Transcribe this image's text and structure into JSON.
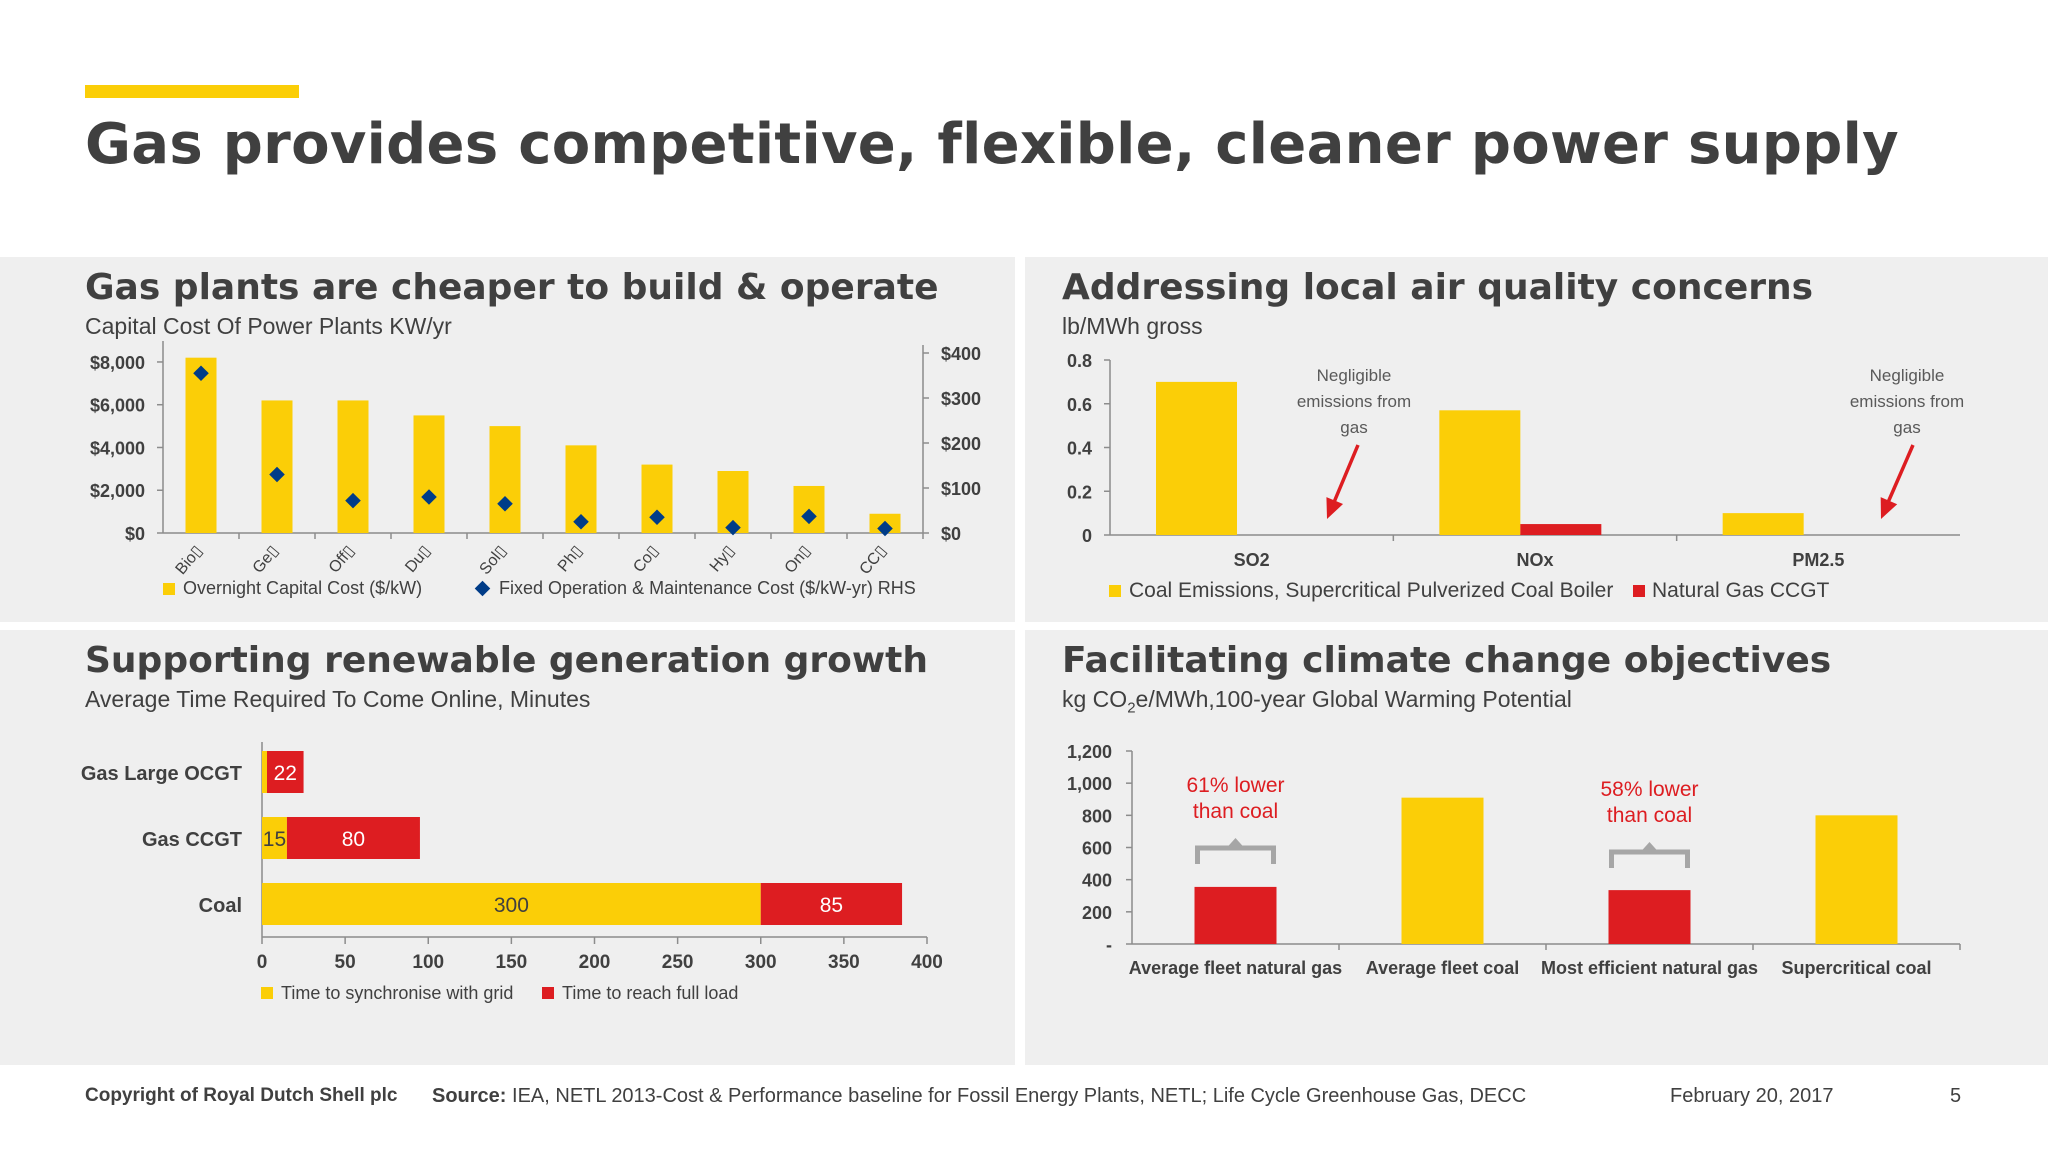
{
  "title": "Gas provides competitive, flexible, cleaner power supply",
  "colors": {
    "yellow": "#FBCE07",
    "red": "#DD1D21",
    "navy": "#003C88",
    "text": "#404040",
    "panel": "#EFEFEF"
  },
  "panels": {
    "capital": {
      "title": "Gas plants are cheaper to build & operate",
      "subtitle": "Capital Cost Of Power Plants KW/yr"
    },
    "air": {
      "title": "Addressing local air quality concerns",
      "subtitle": "lb/MWh gross"
    },
    "renew": {
      "title": "Supporting renewable generation growth",
      "subtitle": "Average Time Required To Come Online, Minutes"
    },
    "climate": {
      "title": "Facilitating climate change objectives",
      "subtitle_pre": "kg CO",
      "subtitle_sub": "2",
      "subtitle_post": "e/MWh,100-year Global Warming Potential"
    }
  },
  "chart_data": [
    {
      "type": "bar",
      "title": "Gas plants are cheaper to build & operate",
      "subtitle": "Capital Cost Of Power Plants KW/yr",
      "categories": [
        "Bio▯",
        "Ge▯",
        "Off▯",
        "Du▯",
        "Sol▯",
        "Ph▯",
        "Co▯",
        "Hy▯",
        "On▯",
        "CC▯"
      ],
      "series": [
        {
          "name": "Overnight Capital Cost ($/kW)",
          "kind": "bar",
          "axis": "left",
          "color": "#FBCE07",
          "values": [
            8200,
            6200,
            6200,
            5500,
            5000,
            4100,
            3200,
            2900,
            2200,
            900
          ]
        },
        {
          "name": "Fixed Operation & Maintenance Cost ($/kW-yr) RHS",
          "kind": "marker",
          "axis": "right",
          "color": "#003C88",
          "values": [
            355,
            130,
            72,
            80,
            65,
            25,
            35,
            12,
            37,
            10
          ]
        }
      ],
      "left_axis": {
        "ticks": [
          "$0",
          "$2,000",
          "$4,000",
          "$6,000",
          "$8,000"
        ],
        "range": [
          0,
          8700
        ]
      },
      "right_axis": {
        "ticks": [
          "$0",
          "$100",
          "$200",
          "$300",
          "$400"
        ],
        "range": [
          0,
          400
        ]
      },
      "legend_position": "bottom"
    },
    {
      "type": "bar",
      "title": "Addressing local air quality concerns",
      "ylabel": "lb/MWh gross",
      "categories": [
        "SO2",
        "NOx",
        "PM2.5"
      ],
      "series": [
        {
          "name": "Coal Emissions, Supercritical Pulverized Coal Boiler",
          "color": "#FBCE07",
          "values": [
            0.7,
            0.57,
            0.1
          ]
        },
        {
          "name": "Natural Gas CCGT",
          "color": "#DD1D21",
          "values": [
            0,
            0.05,
            0
          ]
        }
      ],
      "y_ticks": [
        "0",
        "0.2",
        "0.4",
        "0.6",
        "0.8"
      ],
      "ylim": [
        0,
        0.8
      ],
      "annotations": [
        "Negligible emissions from gas",
        "Negligible emissions from gas"
      ],
      "legend_position": "bottom"
    },
    {
      "type": "bar",
      "orientation": "horizontal",
      "stacked": true,
      "title": "Supporting renewable generation growth",
      "subtitle": "Average Time Required To Come Online, Minutes",
      "categories": [
        "Gas Large OCGT",
        "Gas CCGT",
        "Coal"
      ],
      "series": [
        {
          "name": "Time to synchronise with grid",
          "color": "#FBCE07",
          "values": [
            3,
            15,
            300
          ],
          "labels": [
            "",
            "15",
            "300"
          ]
        },
        {
          "name": "Time to reach full load",
          "color": "#DD1D21",
          "values": [
            22,
            80,
            85
          ],
          "labels": [
            "22",
            "80",
            "85"
          ]
        }
      ],
      "x_ticks": [
        "0",
        "50",
        "100",
        "150",
        "200",
        "250",
        "300",
        "350",
        "400"
      ],
      "xlim": [
        0,
        400
      ],
      "legend_position": "bottom"
    },
    {
      "type": "bar",
      "title": "Facilitating climate change objectives",
      "ylabel": "kg CO2e/MWh,100-year Global Warming Potential",
      "categories": [
        "Average fleet natural gas",
        "Average fleet coal",
        "Most efficient natural gas",
        "Supercritical coal"
      ],
      "values": [
        355,
        910,
        335,
        800
      ],
      "colors": [
        "#DD1D21",
        "#FBCE07",
        "#DD1D21",
        "#FBCE07"
      ],
      "y_ticks": [
        "-",
        "200",
        "400",
        "600",
        "800",
        "1,000",
        "1,200"
      ],
      "ylim": [
        0,
        1200
      ],
      "annotations": [
        "61% lower than coal",
        "58% lower than coal"
      ]
    }
  ],
  "footer": {
    "copyright": "Copyright of Royal Dutch Shell plc",
    "source_label": "Source:",
    "source_text": " IEA, NETL 2013-Cost & Performance baseline for Fossil Energy Plants, NETL; Life Cycle Greenhouse Gas, DECC",
    "date": "February 20, 2017",
    "page": "5"
  }
}
